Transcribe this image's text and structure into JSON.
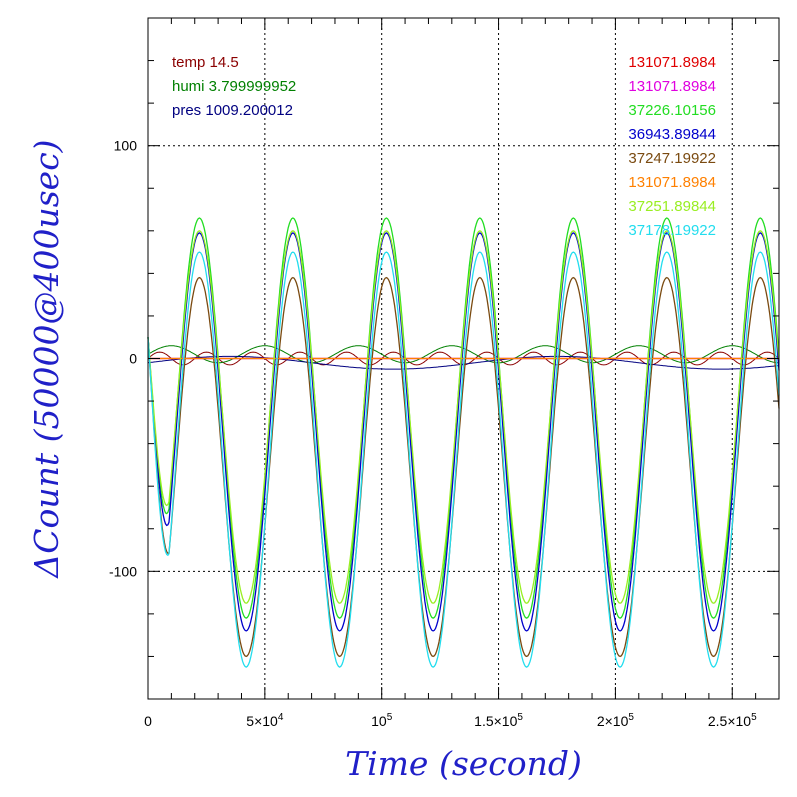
{
  "chart_data": {
    "type": "line",
    "title": "",
    "xlabel": "Time (second)",
    "ylabel": "ΔCount (50000@400usec)",
    "xlim": [
      0,
      270000
    ],
    "ylim": [
      -160,
      160
    ],
    "grid": true,
    "x_ticks": [
      {
        "value": 0,
        "base": "0",
        "sup": ""
      },
      {
        "value": 50000,
        "base": "5×10",
        "sup": "4"
      },
      {
        "value": 100000,
        "base": "10",
        "sup": "5"
      },
      {
        "value": 150000,
        "base": "1.5×10",
        "sup": "5"
      },
      {
        "value": 200000,
        "base": "2×10",
        "sup": "5"
      },
      {
        "value": 250000,
        "base": "2.5×10",
        "sup": "5"
      }
    ],
    "y_ticks": [
      {
        "value": 100,
        "label": "100"
      },
      {
        "value": 0,
        "label": "0"
      },
      {
        "value": -100,
        "label": "-100"
      }
    ],
    "env_legend": [
      {
        "text": "temp 14.5",
        "color": "#8b0000"
      },
      {
        "text": "humi 3.799999952",
        "color": "#008000"
      },
      {
        "text": "pres 1009.200012",
        "color": "#000080"
      }
    ],
    "series": [
      {
        "name": "131071.8984",
        "color": "#e00000",
        "shape": "flat",
        "amp_max": 0,
        "amp_min": 0,
        "offset": 0
      },
      {
        "name": "131071.8984",
        "color": "#e000e0",
        "shape": "flat",
        "amp_max": 0,
        "amp_min": 0,
        "offset": 0
      },
      {
        "name": "37226.10156",
        "color": "#22dd22",
        "shape": "wave",
        "amp_max": 66,
        "amp_min": -122,
        "offset": 0
      },
      {
        "name": "36943.89844",
        "color": "#0000cc",
        "shape": "wave",
        "amp_max": 59,
        "amp_min": -128,
        "offset": 0
      },
      {
        "name": "37247.19922",
        "color": "#7a4a10",
        "shape": "wave",
        "amp_max": 38,
        "amp_min": -140,
        "offset": 0
      },
      {
        "name": "131071.8984",
        "color": "#ff8000",
        "shape": "flat",
        "amp_max": 0,
        "amp_min": 0,
        "offset": 0
      },
      {
        "name": "37251.89844",
        "color": "#99ee22",
        "shape": "wave",
        "amp_max": 60,
        "amp_min": -115,
        "offset": 0
      },
      {
        "name": "37178.19922",
        "color": "#22ddee",
        "shape": "wave",
        "amp_max": 50,
        "amp_min": -145,
        "offset": 0
      }
    ],
    "env_series": [
      {
        "name": "temp",
        "color": "#8b0000",
        "amplitude": 3,
        "period": 20000,
        "offset": 0
      },
      {
        "name": "humi",
        "color": "#008000",
        "amplitude": 4,
        "period": 40000,
        "offset": 2
      },
      {
        "name": "pres",
        "color": "#000080",
        "amplitude": 3,
        "period": 140000,
        "offset": -2
      }
    ],
    "wave_period": 40000,
    "wave_peak_x": 22000
  }
}
